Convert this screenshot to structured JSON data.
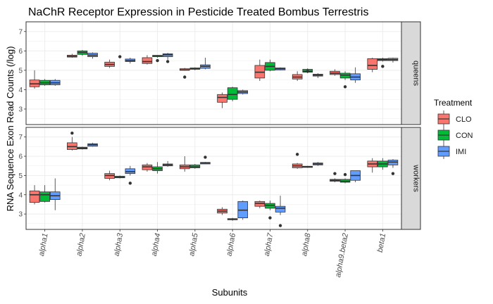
{
  "chart_data": {
    "type": "boxplot",
    "title": "NaChR Receptor Expression in Pesticide Treated Bombus Terrestris",
    "xlabel": "Subunits",
    "ylabel": "RNA Sequence Exon Read Counts (/log)",
    "ylim": [
      2.2,
      7.5
    ],
    "yticks": [
      3,
      4,
      5,
      6,
      7
    ],
    "grid": true,
    "legend": {
      "title": "Treatment",
      "position": "right",
      "entries": [
        "CLO",
        "CON",
        "IMI"
      ]
    },
    "colors": {
      "CLO": "#F8766D",
      "CON": "#00BA38",
      "IMI": "#619CFF"
    },
    "categories": [
      "alpha1",
      "alpha2",
      "alpha3",
      "alpha4",
      "alpha5",
      "alpha6",
      "alpha7",
      "alpha8",
      "alpha9.beta2",
      "beta1"
    ],
    "facets": [
      {
        "label": "queens",
        "boxes": {
          "CLO": [
            [
              4.05,
              4.15,
              4.3,
              4.5,
              5.0
            ],
            [
              5.65,
              5.68,
              5.72,
              5.78,
              5.85
            ],
            [
              5.12,
              5.2,
              5.3,
              5.42,
              5.55
            ],
            [
              5.3,
              5.35,
              5.45,
              5.65,
              5.78
            ],
            [
              4.98,
              5.0,
              5.02,
              5.08,
              5.12
            ],
            [
              3.05,
              3.35,
              3.6,
              3.75,
              3.85
            ],
            [
              4.45,
              4.6,
              4.9,
              5.25,
              5.55
            ],
            [
              4.45,
              4.55,
              4.65,
              4.78,
              4.95
            ],
            [
              4.72,
              4.78,
              4.85,
              4.95,
              5.05
            ],
            [
              4.9,
              5.05,
              5.25,
              5.6,
              5.65
            ]
          ],
          "CON": [
            [
              4.2,
              4.25,
              4.35,
              4.48,
              4.55
            ],
            [
              5.75,
              5.82,
              5.92,
              6.0,
              6.05
            ],
            [
              null,
              null,
              null,
              null,
              null
            ],
            [
              5.65,
              5.7,
              5.75,
              5.77,
              5.78
            ],
            [
              5.0,
              5.05,
              5.08,
              5.12,
              5.15
            ],
            [
              3.4,
              3.5,
              3.75,
              4.1,
              4.15
            ],
            [
              4.95,
              5.0,
              5.2,
              5.4,
              5.55
            ],
            [
              4.85,
              4.9,
              4.95,
              5.05,
              5.1
            ],
            [
              4.5,
              4.6,
              4.75,
              4.85,
              4.95
            ],
            [
              5.45,
              5.5,
              5.55,
              5.6,
              5.65
            ]
          ],
          "IMI": [
            [
              4.2,
              4.25,
              4.35,
              4.48,
              4.55
            ],
            [
              5.6,
              5.7,
              5.78,
              5.88,
              5.92
            ],
            [
              5.35,
              5.45,
              5.5,
              5.58,
              5.65
            ],
            [
              5.55,
              5.7,
              5.8,
              5.85,
              5.9
            ],
            [
              5.05,
              5.1,
              5.2,
              5.28,
              5.65
            ],
            [
              3.75,
              3.8,
              3.88,
              3.95,
              4.0
            ],
            [
              5.0,
              5.02,
              5.08,
              5.12,
              5.15
            ],
            [
              4.6,
              4.7,
              4.75,
              4.8,
              4.85
            ],
            [
              4.35,
              4.5,
              4.65,
              4.82,
              5.15
            ],
            [
              5.4,
              5.5,
              5.55,
              5.62,
              5.65
            ]
          ]
        },
        "outliers": {
          "CLO": [
            [],
            [],
            [],
            [],
            [
              4.65
            ],
            [],
            [],
            [],
            [],
            []
          ],
          "CON": [
            [],
            [],
            [
              5.7
            ],
            [
              5.5
            ],
            [],
            [],
            [],
            [
              4.95
            ],
            [
              4.15
            ],
            [
              5.2
            ]
          ],
          "IMI": [
            [],
            [],
            [],
            [
              5.45
            ],
            [],
            [],
            [],
            [],
            [],
            []
          ]
        }
      },
      {
        "label": "workers",
        "boxes": {
          "CLO": [
            [
              3.5,
              3.6,
              4.0,
              4.2,
              4.5
            ],
            [
              6.3,
              6.35,
              6.5,
              6.7,
              7.0
            ],
            [
              4.75,
              4.85,
              5.0,
              5.1,
              5.25
            ],
            [
              5.2,
              5.3,
              5.45,
              5.55,
              5.65
            ],
            [
              5.2,
              5.35,
              5.45,
              5.55,
              6.0
            ],
            [
              2.95,
              3.05,
              3.15,
              3.25,
              3.35
            ],
            [
              3.3,
              3.4,
              3.55,
              3.65,
              3.7
            ],
            [
              5.35,
              5.4,
              5.5,
              5.6,
              5.65
            ],
            [
              4.65,
              4.7,
              4.75,
              4.8,
              4.85
            ],
            [
              5.15,
              5.45,
              5.6,
              5.75,
              5.9
            ]
          ],
          "CON": [
            [
              3.6,
              3.65,
              4.0,
              4.15,
              4.5
            ],
            [
              6.35,
              6.38,
              6.42,
              6.47,
              6.5
            ],
            [
              4.85,
              4.88,
              4.92,
              4.96,
              5.0
            ],
            [
              5.1,
              5.25,
              5.35,
              5.45,
              5.7
            ],
            [
              5.35,
              5.4,
              5.45,
              5.55,
              5.6
            ],
            [
              2.65,
              2.7,
              2.72,
              2.76,
              2.8
            ],
            [
              3.2,
              3.3,
              3.45,
              3.55,
              3.7
            ],
            [
              5.4,
              5.42,
              5.45,
              5.48,
              5.5
            ],
            [
              4.6,
              4.65,
              4.7,
              4.8,
              4.85
            ],
            [
              5.3,
              5.45,
              5.6,
              5.75,
              5.9
            ]
          ],
          "IMI": [
            [
              3.2,
              3.75,
              3.95,
              4.15,
              4.85
            ],
            [
              6.5,
              6.52,
              6.6,
              6.65,
              6.7
            ],
            [
              5.0,
              5.1,
              5.2,
              5.35,
              5.5
            ],
            [
              5.45,
              5.5,
              5.55,
              5.6,
              5.75
            ],
            [
              5.6,
              5.6,
              5.65,
              5.68,
              5.7
            ],
            [
              2.7,
              2.8,
              3.2,
              3.65,
              3.7
            ],
            [
              2.95,
              3.1,
              3.3,
              3.4,
              3.95
            ],
            [
              5.5,
              5.55,
              5.6,
              5.65,
              5.7
            ],
            [
              4.65,
              4.75,
              5.0,
              5.25,
              5.25
            ],
            [
              5.4,
              5.55,
              5.7,
              5.8,
              5.85
            ]
          ]
        },
        "outliers": {
          "CLO": [
            [],
            [
              7.2
            ],
            [],
            [],
            [],
            [],
            [],
            [
              6.1
            ],
            [
              5.1
            ],
            []
          ],
          "CON": [
            [],
            [],
            [],
            [],
            [],
            [],
            [
              2.8
            ],
            [],
            [
              5.05
            ],
            []
          ],
          "IMI": [
            [],
            [],
            [
              4.6
            ],
            [],
            [
              5.95
            ],
            [],
            [
              2.4
            ],
            [],
            [],
            [
              5.1
            ]
          ]
        }
      }
    ]
  }
}
